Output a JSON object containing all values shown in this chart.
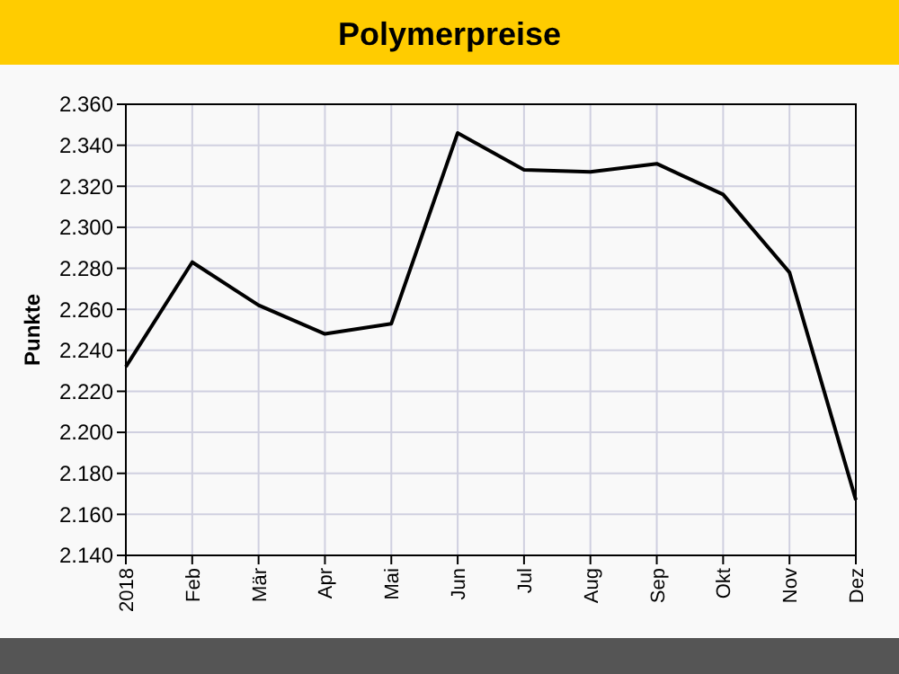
{
  "chart_data": {
    "type": "line",
    "title": "Polymerpreise",
    "ylabel": "Punkte",
    "categories": [
      "2018",
      "Feb",
      "Mär",
      "Apr",
      "Mai",
      "Jun",
      "Jul",
      "Aug",
      "Sep",
      "Okt",
      "Nov",
      "Dez"
    ],
    "series": [
      {
        "color": "#000000",
        "values": [
          2.232,
          2.283,
          2.262,
          2.248,
          2.253,
          2.346,
          2.328,
          2.327,
          2.331,
          2.316,
          2.278,
          2.167
        ]
      }
    ],
    "ylim": [
      2.14,
      2.36
    ],
    "yticks": [
      {
        "value": 2.14,
        "label": "2.140"
      },
      {
        "value": 2.16,
        "label": "2.160"
      },
      {
        "value": 2.18,
        "label": "2.180"
      },
      {
        "value": 2.2,
        "label": "2.200"
      },
      {
        "value": 2.22,
        "label": "2.220"
      },
      {
        "value": 2.24,
        "label": "2.240"
      },
      {
        "value": 2.26,
        "label": "2.260"
      },
      {
        "value": 2.28,
        "label": "2.280"
      },
      {
        "value": 2.3,
        "label": "2.300"
      },
      {
        "value": 2.32,
        "label": "2.320"
      },
      {
        "value": 2.34,
        "label": "2.340"
      },
      {
        "value": 2.36,
        "label": "2.360"
      }
    ],
    "grid": true,
    "marker": "none",
    "line_style": "solid"
  }
}
